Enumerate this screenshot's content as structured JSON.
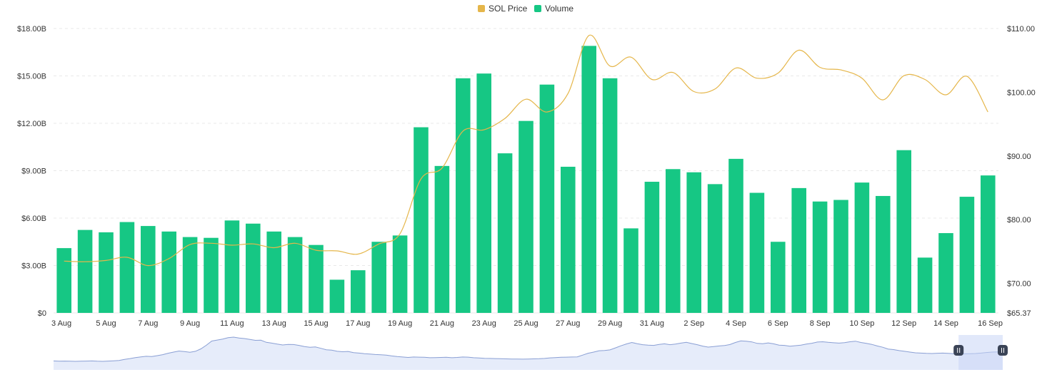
{
  "colors": {
    "price": "#E5B64A",
    "volume": "#16C784",
    "grid": "#E8E8E8",
    "navigator_line": "#8A9FD4",
    "navigator_fill": "#E6ECFA",
    "handle": "#3A4356"
  },
  "chart_data": {
    "type": "bar",
    "legend": {
      "placement": "top-center",
      "items": [
        {
          "name": "SOL Price",
          "color": "#E5B64A"
        },
        {
          "name": "Volume",
          "color": "#16C784"
        }
      ]
    },
    "grid": true,
    "categories": [
      "3 Aug",
      "4 Aug",
      "5 Aug",
      "6 Aug",
      "7 Aug",
      "8 Aug",
      "9 Aug",
      "10 Aug",
      "11 Aug",
      "12 Aug",
      "13 Aug",
      "14 Aug",
      "15 Aug",
      "16 Aug",
      "17 Aug",
      "18 Aug",
      "19 Aug",
      "20 Aug",
      "21 Aug",
      "22 Aug",
      "23 Aug",
      "24 Aug",
      "25 Aug",
      "26 Aug",
      "27 Aug",
      "28 Aug",
      "29 Aug",
      "30 Aug",
      "31 Aug",
      "1 Sep",
      "2 Sep",
      "3 Sep",
      "4 Sep",
      "5 Sep",
      "6 Sep",
      "7 Sep",
      "8 Sep",
      "9 Sep",
      "10 Sep",
      "11 Sep",
      "12 Sep",
      "13 Sep",
      "14 Sep",
      "15 Sep",
      "16 Sep"
    ],
    "x_tick_labels": [
      "3 Aug",
      "5 Aug",
      "7 Aug",
      "9 Aug",
      "11 Aug",
      "13 Aug",
      "15 Aug",
      "17 Aug",
      "19 Aug",
      "21 Aug",
      "23 Aug",
      "25 Aug",
      "27 Aug",
      "29 Aug",
      "31 Aug",
      "2 Sep",
      "4 Sep",
      "6 Sep",
      "8 Sep",
      "10 Sep",
      "12 Sep",
      "14 Sep",
      "16 Sep"
    ],
    "series": [
      {
        "name": "Volume",
        "type": "bar",
        "axis": "left",
        "values": [
          4.1,
          5.25,
          5.1,
          5.75,
          5.5,
          5.15,
          4.8,
          4.75,
          5.85,
          5.65,
          5.15,
          4.8,
          4.3,
          2.1,
          2.7,
          4.5,
          4.9,
          11.75,
          9.3,
          14.85,
          15.15,
          10.1,
          12.15,
          14.45,
          9.25,
          16.9,
          14.85,
          5.35,
          8.3,
          9.1,
          8.9,
          8.15,
          9.75,
          7.6,
          4.5,
          7.9,
          7.05,
          7.15,
          8.25,
          7.4,
          10.3,
          3.5,
          5.05,
          7.35,
          8.7
        ]
      },
      {
        "name": "SOL Price",
        "type": "line",
        "axis": "right",
        "values": [
          73.5,
          73.4,
          73.6,
          74.1,
          72.8,
          73.9,
          76.1,
          76.3,
          76.0,
          76.2,
          75.6,
          76.3,
          75.2,
          75.1,
          74.6,
          76.2,
          77.8,
          86.4,
          88.1,
          93.9,
          94.1,
          95.9,
          98.9,
          96.9,
          99.8,
          108.9,
          104.1,
          105.5,
          102.0,
          103.1,
          100.1,
          100.5,
          103.8,
          102.2,
          103.0,
          106.6,
          103.9,
          103.5,
          102.2,
          98.8,
          102.6,
          102.0,
          99.6,
          102.5,
          96.9
        ]
      }
    ],
    "y_left": {
      "min": 0,
      "max": 18,
      "ticks": [
        "$0",
        "$3.00B",
        "$6.00B",
        "$9.00B",
        "$12.00B",
        "$15.00B",
        "$18.00B"
      ]
    },
    "y_right": {
      "min": 65.37,
      "max": 110,
      "ticks": [
        {
          "label": "$65.37",
          "value": 65.37
        },
        {
          "label": "$70.00",
          "value": 70
        },
        {
          "label": "$80.00",
          "value": 80
        },
        {
          "label": "$90.00",
          "value": 90
        },
        {
          "label": "$100.00",
          "value": 100
        },
        {
          "label": "$110.00",
          "value": 110
        }
      ]
    },
    "navigator": {
      "values": [
        74.2,
        74.0,
        74.1,
        74.0,
        73.9,
        74.0,
        74.1,
        74.2,
        74.0,
        73.9,
        74.1,
        74.3,
        74.5,
        75.2,
        75.8,
        76.5,
        77.0,
        77.4,
        77.2,
        77.8,
        78.5,
        79.5,
        80.3,
        81.0,
        80.6,
        80.2,
        80.8,
        82.5,
        85.0,
        87.9,
        88.6,
        89.3,
        90.2,
        90.6,
        90.0,
        89.6,
        89.0,
        88.4,
        88.5,
        87.0,
        86.5,
        85.8,
        85.2,
        85.6,
        85.5,
        84.9,
        84.1,
        83.6,
        83.8,
        82.9,
        81.9,
        81.6,
        80.8,
        80.5,
        80.7,
        79.9,
        79.6,
        79.2,
        78.9,
        78.6,
        78.4,
        78.2,
        77.6,
        77.2,
        76.9,
        76.6,
        76.9,
        76.8,
        76.7,
        76.4,
        76.5,
        76.6,
        76.7,
        76.4,
        76.6,
        76.9,
        76.8,
        76.4,
        76.2,
        76.0,
        75.9,
        75.8,
        75.7,
        75.6,
        75.5,
        75.5,
        75.4,
        75.5,
        75.6,
        75.7,
        75.9,
        76.3,
        76.5,
        76.7,
        76.8,
        76.9,
        77.0,
        78.2,
        79.5,
        80.3,
        81.2,
        81.4,
        81.8,
        83.2,
        84.6,
        85.9,
        86.9,
        86.1,
        85.4,
        85.1,
        84.9,
        85.6,
        86.0,
        85.4,
        85.8,
        86.5,
        87.0,
        86.2,
        85.4,
        84.4,
        83.7,
        84.1,
        84.5,
        84.8,
        85.5,
        86.9,
        88.0,
        87.8,
        87.3,
        86.3,
        86.1,
        86.6,
        86.0,
        85.1,
        84.9,
        84.3,
        84.7,
        85.1,
        85.8,
        86.4,
        87.2,
        87.4,
        87.0,
        86.7,
        86.5,
        86.8,
        87.4,
        87.8,
        86.9,
        86.3,
        85.6,
        84.5,
        83.6,
        82.4,
        82.0,
        81.3,
        80.8,
        80.3,
        79.8,
        79.6,
        79.4,
        79.3,
        79.5,
        79.6,
        79.4,
        79.2,
        79.0,
        79.1,
        79.2,
        79.3,
        79.6,
        80.0,
        80.3,
        80.4,
        80.5
      ]
    },
    "navigator_range": {
      "start_index": 43,
      "end_index": 44
    }
  }
}
